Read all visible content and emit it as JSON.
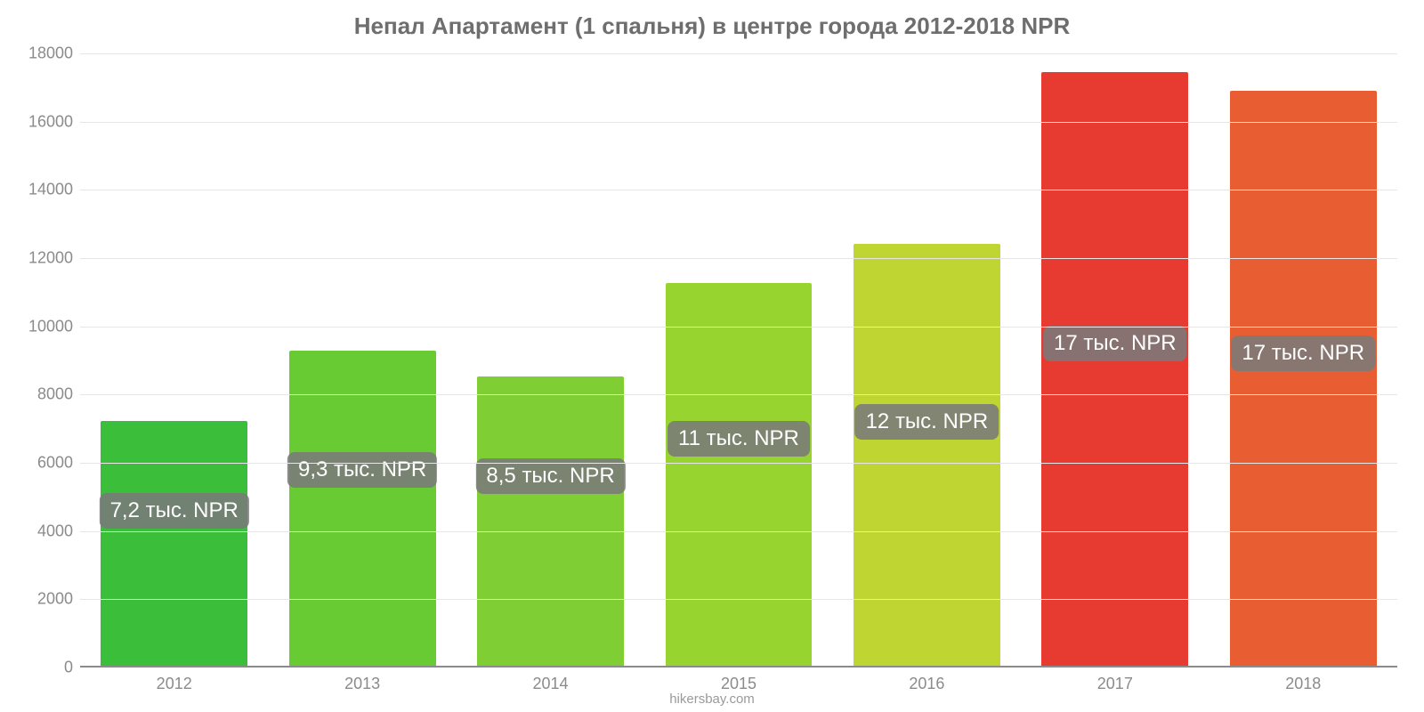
{
  "chart": {
    "type": "bar",
    "title": "Непал Апартамент (1 спальня) в центре города 2012-2018 NPR",
    "title_fontsize": 26,
    "title_color": "#6e6e6e",
    "background_color": "#ffffff",
    "grid_color": "#e6e6e6",
    "axis_color": "#8b8b8b",
    "axis_label_color": "#8b8b8b",
    "axis_fontsize": 18,
    "font_family": "Arial, Helvetica, sans-serif",
    "ylim": [
      0,
      18000
    ],
    "ytick_step": 2000,
    "yticks": [
      {
        "value": 0,
        "label": "0"
      },
      {
        "value": 2000,
        "label": "2000"
      },
      {
        "value": 4000,
        "label": "4000"
      },
      {
        "value": 6000,
        "label": "6000"
      },
      {
        "value": 8000,
        "label": "8000"
      },
      {
        "value": 10000,
        "label": "10000"
      },
      {
        "value": 12000,
        "label": "12000"
      },
      {
        "value": 14000,
        "label": "14000"
      },
      {
        "value": 16000,
        "label": "16000"
      },
      {
        "value": 18000,
        "label": "18000"
      }
    ],
    "bar_width_ratio": 0.78,
    "bars": [
      {
        "category": "2012",
        "value": 7200,
        "color": "#3bbf3b",
        "label": "7,2 тыс. NPR",
        "label_y": 4600
      },
      {
        "category": "2013",
        "value": 9250,
        "color": "#68cb34",
        "label": "9,3 тыс. NPR",
        "label_y": 5800
      },
      {
        "category": "2014",
        "value": 8500,
        "color": "#7ece34",
        "label": "8,5 тыс. NPR",
        "label_y": 5600
      },
      {
        "category": "2015",
        "value": 11250,
        "color": "#97d42f",
        "label": "11 тыс. NPR",
        "label_y": 6700
      },
      {
        "category": "2016",
        "value": 12400,
        "color": "#bfd531",
        "label": "12 тыс. NPR",
        "label_y": 7200
      },
      {
        "category": "2017",
        "value": 17450,
        "color": "#e73b32",
        "label": "17 тыс. NPR",
        "label_y": 9500
      },
      {
        "category": "2018",
        "value": 16900,
        "color": "#e85d31",
        "label": "17 тыс. NPR",
        "label_y": 9200
      }
    ],
    "badge": {
      "bg": "#7a7a7a",
      "bg_opacity": 0.88,
      "text_color": "#ffffff",
      "fontsize": 24,
      "radius": 8
    },
    "credit": "hikersbay.com",
    "credit_fontsize": 15,
    "credit_color": "#9a9a9a"
  }
}
